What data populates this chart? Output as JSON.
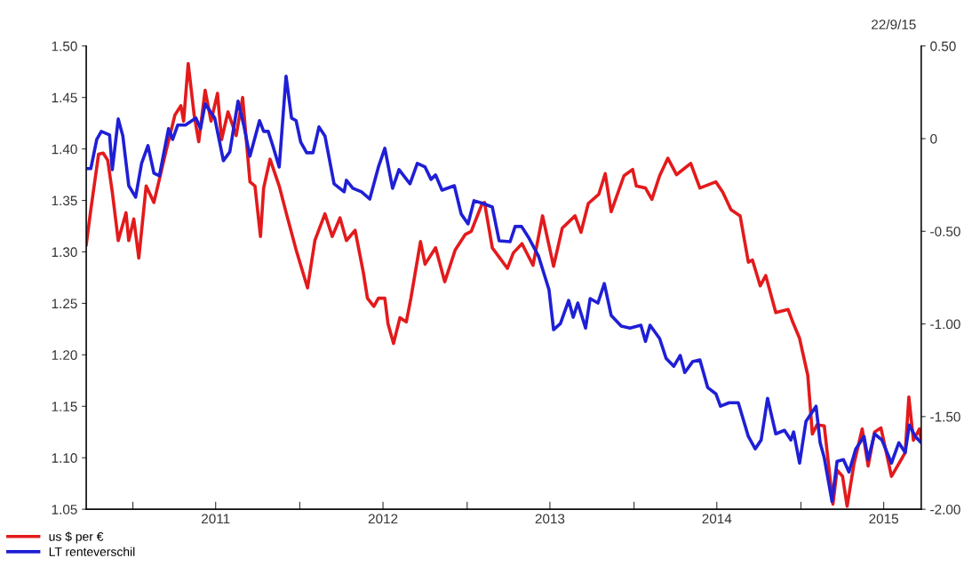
{
  "chart_data": {
    "type": "line",
    "annotations": [
      "22/9/15"
    ],
    "xlim": [
      "2010-09-21",
      "2015-09-21"
    ],
    "xticks": [
      {
        "value": "2011-01-01",
        "label": null
      },
      {
        "value": "2011-07-01",
        "label": "2011"
      },
      {
        "value": "2012-01-01",
        "label": null
      },
      {
        "value": "2012-07-01",
        "label": "2012"
      },
      {
        "value": "2013-01-01",
        "label": null
      },
      {
        "value": "2013-07-01",
        "label": "2013"
      },
      {
        "value": "2014-01-01",
        "label": null
      },
      {
        "value": "2014-07-01",
        "label": "2014"
      },
      {
        "value": "2015-01-01",
        "label": null
      },
      {
        "value": "2015-07-01",
        "label": "2015"
      }
    ],
    "ylim": [
      1.05,
      1.5
    ],
    "yticks": [
      {
        "value": 1.05,
        "label": "1.05"
      },
      {
        "value": 1.1,
        "label": "1.10"
      },
      {
        "value": 1.15,
        "label": "1.15"
      },
      {
        "value": 1.2,
        "label": "1.20"
      },
      {
        "value": 1.25,
        "label": "1.25"
      },
      {
        "value": 1.3,
        "label": "1.30"
      },
      {
        "value": 1.35,
        "label": "1.35"
      },
      {
        "value": 1.4,
        "label": "1.40"
      },
      {
        "value": 1.45,
        "label": "1.45"
      },
      {
        "value": 1.5,
        "label": "1.50"
      }
    ],
    "y2lim": [
      -2.0,
      0.5
    ],
    "y2ticks": [
      {
        "value": -2.0,
        "label": "-2.00"
      },
      {
        "value": -1.5,
        "label": "-1.50"
      },
      {
        "value": -1.0,
        "label": "-1.00"
      },
      {
        "value": -0.5,
        "label": "-0.50"
      },
      {
        "value": 0,
        "label": "0"
      },
      {
        "value": 0.5,
        "label": "0.50"
      }
    ],
    "grid": false,
    "legend": "bottom left",
    "line_style": "solid",
    "marker": "none",
    "series": [
      {
        "name": "us $ per €",
        "color": "#e31a1c",
        "x": [
          "2010-09-21",
          "2010-10-01",
          "2010-10-18",
          "2010-10-28",
          "2010-11-07",
          "2010-11-17",
          "2010-11-30",
          "2010-12-17",
          "2010-12-23",
          "2011-01-03",
          "2011-01-14",
          "2011-01-30",
          "2011-02-16",
          "2011-03-14",
          "2011-04-03",
          "2011-04-16",
          "2011-04-22",
          "2011-05-02",
          "2011-05-15",
          "2011-05-25",
          "2011-06-08",
          "2011-06-21",
          "2011-07-05",
          "2011-07-14",
          "2011-07-28",
          "2011-08-15",
          "2011-08-29",
          "2011-09-14",
          "2011-09-25",
          "2011-10-07",
          "2011-10-14",
          "2011-10-28",
          "2011-11-17",
          "2011-12-04",
          "2011-12-24",
          "2012-01-18",
          "2012-02-03",
          "2012-02-25",
          "2012-03-12",
          "2012-03-29",
          "2012-04-12",
          "2012-05-01",
          "2012-05-19",
          "2012-05-28",
          "2012-06-11",
          "2012-06-21",
          "2012-07-05",
          "2012-07-12",
          "2012-07-24",
          "2012-08-07",
          "2012-08-21",
          "2012-08-31",
          "2012-09-21",
          "2012-10-01",
          "2012-10-24",
          "2012-11-13",
          "2012-12-06",
          "2012-12-28",
          "2013-01-10",
          "2013-02-03",
          "2013-02-08",
          "2013-02-25",
          "2013-03-30",
          "2013-04-12",
          "2013-05-01",
          "2013-05-25",
          "2013-06-15",
          "2013-07-09",
          "2013-07-28",
          "2013-08-25",
          "2013-09-07",
          "2013-09-23",
          "2013-10-16",
          "2013-10-30",
          "2013-11-12",
          "2013-12-10",
          "2013-12-29",
          "2014-01-06",
          "2014-01-26",
          "2014-02-09",
          "2014-02-26",
          "2014-03-16",
          "2014-04-04",
          "2014-05-05",
          "2014-05-25",
          "2014-06-29",
          "2014-07-14",
          "2014-08-01",
          "2014-08-21",
          "2014-09-08",
          "2014-09-17",
          "2014-10-04",
          "2014-10-16",
          "2014-11-07",
          "2014-12-04",
          "2014-12-14",
          "2014-12-29",
          "2015-01-16",
          "2015-01-26",
          "2015-02-05",
          "2015-02-21",
          "2015-03-12",
          "2015-03-21",
          "2015-04-02",
          "2015-04-12",
          "2015-04-27",
          "2015-05-15",
          "2015-05-28",
          "2015-06-11",
          "2015-06-25",
          "2015-07-18",
          "2015-08-17",
          "2015-08-25",
          "2015-09-04",
          "2015-09-17",
          "2015-09-21"
        ],
        "values": [
          1.307,
          1.341,
          1.395,
          1.396,
          1.389,
          1.358,
          1.311,
          1.338,
          1.311,
          1.332,
          1.294,
          1.364,
          1.348,
          1.397,
          1.433,
          1.442,
          1.427,
          1.483,
          1.433,
          1.407,
          1.457,
          1.427,
          1.454,
          1.409,
          1.436,
          1.413,
          1.45,
          1.368,
          1.364,
          1.315,
          1.362,
          1.39,
          1.364,
          1.335,
          1.302,
          1.265,
          1.311,
          1.337,
          1.315,
          1.333,
          1.311,
          1.321,
          1.28,
          1.255,
          1.247,
          1.255,
          1.255,
          1.23,
          1.211,
          1.236,
          1.232,
          1.255,
          1.31,
          1.288,
          1.304,
          1.271,
          1.302,
          1.317,
          1.32,
          1.347,
          1.348,
          1.304,
          1.284,
          1.299,
          1.308,
          1.287,
          1.335,
          1.286,
          1.323,
          1.335,
          1.319,
          1.347,
          1.356,
          1.376,
          1.339,
          1.374,
          1.38,
          1.364,
          1.362,
          1.351,
          1.374,
          1.391,
          1.375,
          1.386,
          1.362,
          1.368,
          1.358,
          1.341,
          1.335,
          1.29,
          1.292,
          1.267,
          1.277,
          1.241,
          1.244,
          1.232,
          1.216,
          1.18,
          1.123,
          1.132,
          1.131,
          1.055,
          1.088,
          1.082,
          1.053,
          1.094,
          1.128,
          1.092,
          1.125,
          1.129,
          1.082,
          1.105,
          1.159,
          1.117,
          1.128,
          1.117
        ]
      },
      {
        "name": "LT renteverschil",
        "color": "#1f1fd6",
        "axis": "y2",
        "x": [
          "2010-09-21",
          "2010-10-01",
          "2010-10-14",
          "2010-10-24",
          "2010-11-11",
          "2010-11-17",
          "2010-11-30",
          "2010-12-10",
          "2010-12-23",
          "2011-01-07",
          "2011-01-20",
          "2011-02-03",
          "2011-02-16",
          "2011-02-28",
          "2011-03-20",
          "2011-03-29",
          "2011-04-09",
          "2011-04-26",
          "2011-05-19",
          "2011-05-29",
          "2011-06-08",
          "2011-06-29",
          "2011-07-18",
          "2011-08-01",
          "2011-08-19",
          "2011-08-31",
          "2011-09-14",
          "2011-10-05",
          "2011-10-14",
          "2011-10-24",
          "2011-11-03",
          "2011-11-17",
          "2011-12-02",
          "2011-12-14",
          "2011-12-24",
          "2012-01-03",
          "2012-01-16",
          "2012-01-30",
          "2012-02-12",
          "2012-02-25",
          "2012-03-16",
          "2012-04-07",
          "2012-04-12",
          "2012-04-26",
          "2012-05-15",
          "2012-06-02",
          "2012-06-21",
          "2012-07-05",
          "2012-07-22",
          "2012-08-05",
          "2012-08-29",
          "2012-09-14",
          "2012-10-01",
          "2012-10-14",
          "2012-10-24",
          "2012-11-07",
          "2012-12-04",
          "2012-12-19",
          "2013-01-03",
          "2013-01-16",
          "2013-02-05",
          "2013-02-25",
          "2013-03-12",
          "2013-04-05",
          "2013-04-16",
          "2013-04-30",
          "2013-05-15",
          "2013-06-06",
          "2013-06-29",
          "2013-07-09",
          "2013-07-24",
          "2013-08-11",
          "2013-08-21",
          "2013-08-31",
          "2013-09-17",
          "2013-09-27",
          "2013-10-14",
          "2013-10-28",
          "2013-11-12",
          "2013-12-04",
          "2013-12-23",
          "2014-01-16",
          "2014-01-26",
          "2014-02-05",
          "2014-02-26",
          "2014-03-12",
          "2014-03-29",
          "2014-04-12",
          "2014-04-22",
          "2014-05-09",
          "2014-05-25",
          "2014-06-11",
          "2014-06-29",
          "2014-07-09",
          "2014-07-28",
          "2014-08-17",
          "2014-09-08",
          "2014-09-23",
          "2014-10-06",
          "2014-10-20",
          "2014-11-07",
          "2014-11-26",
          "2014-12-10",
          "2014-12-16",
          "2014-12-29",
          "2015-01-12",
          "2015-02-03",
          "2015-02-12",
          "2015-02-21",
          "2015-03-10",
          "2015-03-21",
          "2015-04-04",
          "2015-04-16",
          "2015-05-01",
          "2015-05-19",
          "2015-05-28",
          "2015-06-11",
          "2015-06-27",
          "2015-07-18",
          "2015-08-03",
          "2015-08-17",
          "2015-08-26",
          "2015-09-08",
          "2015-09-21"
        ],
        "values": [
          -0.162,
          -0.162,
          -0.004,
          0.039,
          0.02,
          -0.167,
          0.106,
          0.015,
          -0.254,
          -0.316,
          -0.134,
          -0.038,
          -0.186,
          -0.201,
          0.054,
          -0.004,
          0.073,
          0.073,
          0.111,
          0.054,
          0.188,
          0.111,
          -0.119,
          -0.071,
          0.202,
          0.078,
          -0.095,
          0.097,
          0.039,
          0.039,
          -0.038,
          -0.153,
          0.337,
          0.111,
          0.097,
          -0.018,
          -0.076,
          -0.076,
          0.063,
          0.015,
          -0.244,
          -0.287,
          -0.225,
          -0.268,
          -0.287,
          -0.326,
          -0.153,
          -0.052,
          -0.268,
          -0.167,
          -0.244,
          -0.134,
          -0.153,
          -0.22,
          -0.196,
          -0.278,
          -0.254,
          -0.407,
          -0.46,
          -0.335,
          -0.35,
          -0.369,
          -0.551,
          -0.556,
          -0.474,
          -0.474,
          -0.532,
          -0.633,
          -0.815,
          -1.031,
          -0.998,
          -0.873,
          -0.964,
          -0.887,
          -1.022,
          -0.863,
          -0.887,
          -0.782,
          -0.954,
          -1.012,
          -1.022,
          -1.007,
          -1.094,
          -1.007,
          -1.079,
          -1.185,
          -1.228,
          -1.17,
          -1.262,
          -1.204,
          -1.194,
          -1.343,
          -1.377,
          -1.444,
          -1.425,
          -1.425,
          -1.607,
          -1.674,
          -1.626,
          -1.401,
          -1.593,
          -1.574,
          -1.626,
          -1.583,
          -1.751,
          -1.526,
          -1.444,
          -1.641,
          -1.722,
          -1.958,
          -1.742,
          -1.732,
          -1.799,
          -1.674,
          -1.607,
          -1.732,
          -1.593,
          -1.626,
          -1.751,
          -1.641,
          -1.694,
          -1.545,
          -1.607,
          -1.641
        ]
      }
    ]
  }
}
